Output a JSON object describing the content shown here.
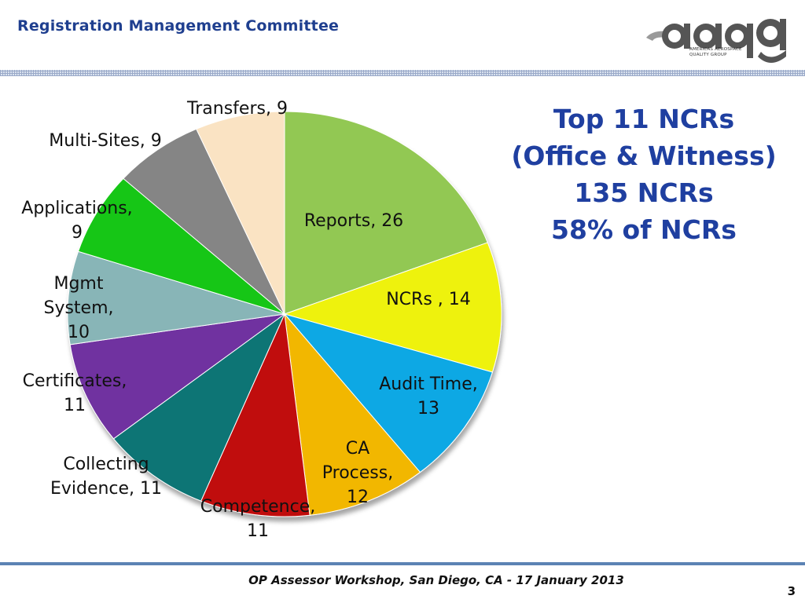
{
  "header": {
    "title": "Registration Management Committee"
  },
  "logo": {
    "wordmark": "aaqg",
    "subtitle_line1": "AMERICAS AEROSPACE",
    "subtitle_line2": "QUALITY GROUP",
    "brand_color": "#555555"
  },
  "headline": {
    "line1": "Top 11 NCRs",
    "line2": "(Office & Witness)",
    "line3": "135 NCRs",
    "line4": "58% of NCRs"
  },
  "chart_data": {
    "type": "pie",
    "title": "",
    "start": "12 o'clock",
    "direction": "clockwise",
    "slices": [
      {
        "label": "Reports, 26",
        "value": 26,
        "color": "#92c852"
      },
      {
        "label": "NCRs , 14",
        "value": 14,
        "color": "#eef20d"
      },
      {
        "label": "Audit Time, 13",
        "value": 13,
        "color": "#07a8e4"
      },
      {
        "label": "CA Process, 12",
        "value": 12,
        "color": "#f2b705"
      },
      {
        "label": "Competence, 11",
        "value": 11,
        "color": "#c00d0d"
      },
      {
        "label": "Collecting Evidence, 11",
        "value": 11,
        "color": "#0e7474"
      },
      {
        "label": "Certificates, 11",
        "value": 11,
        "color": "#7030a0"
      },
      {
        "label": "Mgmt System, 10",
        "value": 10,
        "color": "#88b5b7"
      },
      {
        "label": "Applications, 9",
        "value": 9,
        "color": "#13c613"
      },
      {
        "label": "Multi-Sites, 9",
        "value": 9,
        "color": "#858585"
      },
      {
        "label": "Transfers, 9",
        "value": 9,
        "color": "#fae3c3"
      }
    ],
    "label_lines": [
      [
        "Reports, 26"
      ],
      [
        "NCRs , 14"
      ],
      [
        "Audit Time,",
        "13"
      ],
      [
        "CA",
        "Process,",
        "12"
      ],
      [
        "Competence,",
        "11"
      ],
      [
        "Collecting",
        "Evidence, 11"
      ],
      [
        "Certificates,",
        "11"
      ],
      [
        "Mgmt",
        "System,",
        "10"
      ],
      [
        "Applications,",
        "9"
      ],
      [
        "Multi-Sites, 9"
      ],
      [
        "Transfers, 9"
      ]
    ]
  },
  "footer": {
    "text": "OP Assessor Workshop, San Diego, CA - 17 January 2013",
    "page_number": "3"
  }
}
